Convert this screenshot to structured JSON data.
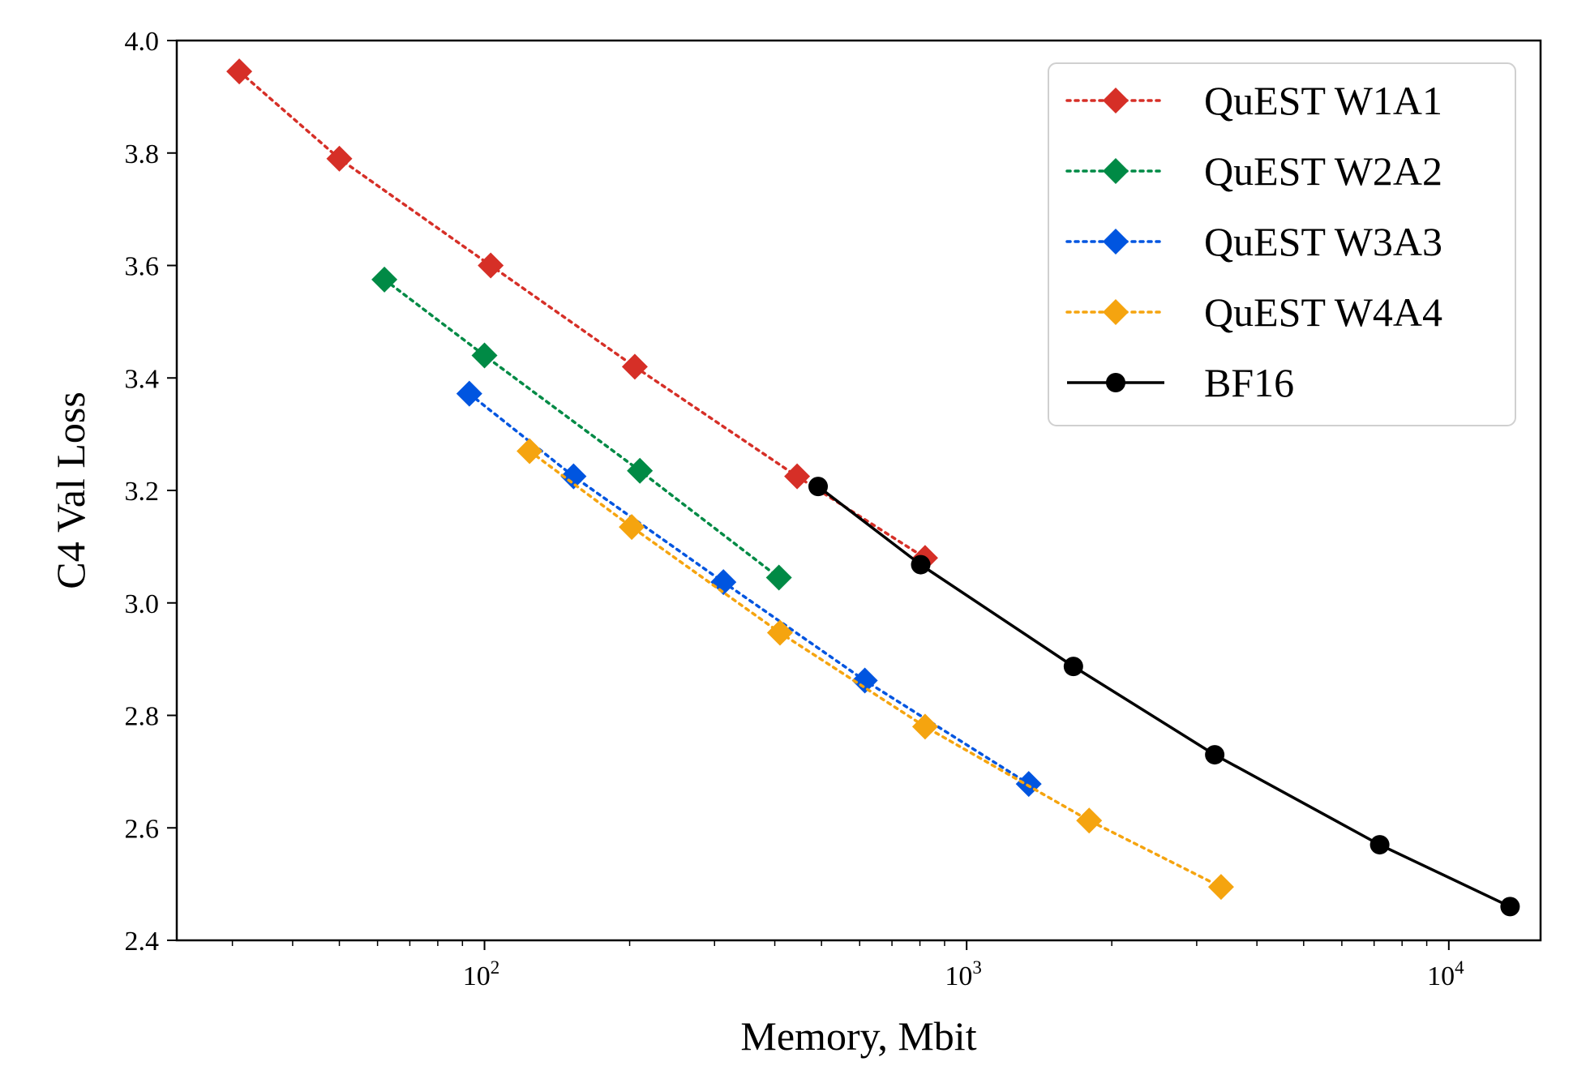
{
  "chart_data": {
    "type": "line",
    "title": "",
    "xlabel": "Memory, Mbit",
    "ylabel": "C4 Val Loss",
    "xscale": "log",
    "xlim": [
      23,
      15500
    ],
    "ylim": [
      2.4,
      4.0
    ],
    "x_ticks": [
      {
        "value": 100,
        "base": "10",
        "exp": "2"
      },
      {
        "value": 1000,
        "base": "10",
        "exp": "3"
      },
      {
        "value": 10000,
        "base": "10",
        "exp": "4"
      }
    ],
    "y_ticks": [
      "2.4",
      "2.6",
      "2.8",
      "3.0",
      "3.2",
      "3.4",
      "3.6",
      "3.8",
      "4.0"
    ],
    "grid": false,
    "legend_position": "top-right",
    "series": [
      {
        "name": "QuEST W1A1",
        "color": "#d62f27",
        "marker": "diamond",
        "linestyle": "dotted",
        "x": [
          31,
          50,
          103,
          205,
          445,
          820
        ],
        "y": [
          3.945,
          3.79,
          3.6,
          3.42,
          3.225,
          3.08
        ]
      },
      {
        "name": "QuEST W2A2",
        "color": "#008a45",
        "marker": "diamond",
        "linestyle": "dotted",
        "x": [
          62,
          100,
          210,
          408
        ],
        "y": [
          3.575,
          3.44,
          3.235,
          3.045
        ]
      },
      {
        "name": "QuEST W3A3",
        "color": "#0055e0",
        "marker": "diamond",
        "linestyle": "dotted",
        "x": [
          93,
          153,
          313,
          615,
          1345
        ],
        "y": [
          3.372,
          3.225,
          3.037,
          2.862,
          2.678
        ]
      },
      {
        "name": "QuEST W4A4",
        "color": "#f5a40f",
        "marker": "diamond",
        "linestyle": "dotted",
        "x": [
          124,
          202,
          410,
          820,
          1795,
          3370
        ],
        "y": [
          3.27,
          3.135,
          2.947,
          2.78,
          2.613,
          2.495
        ]
      },
      {
        "name": "BF16",
        "color": "#000000",
        "marker": "circle",
        "linestyle": "solid",
        "x": [
          492,
          803,
          1665,
          3270,
          7190,
          13400
        ],
        "y": [
          3.207,
          3.068,
          2.887,
          2.73,
          2.57,
          2.46
        ]
      }
    ]
  }
}
